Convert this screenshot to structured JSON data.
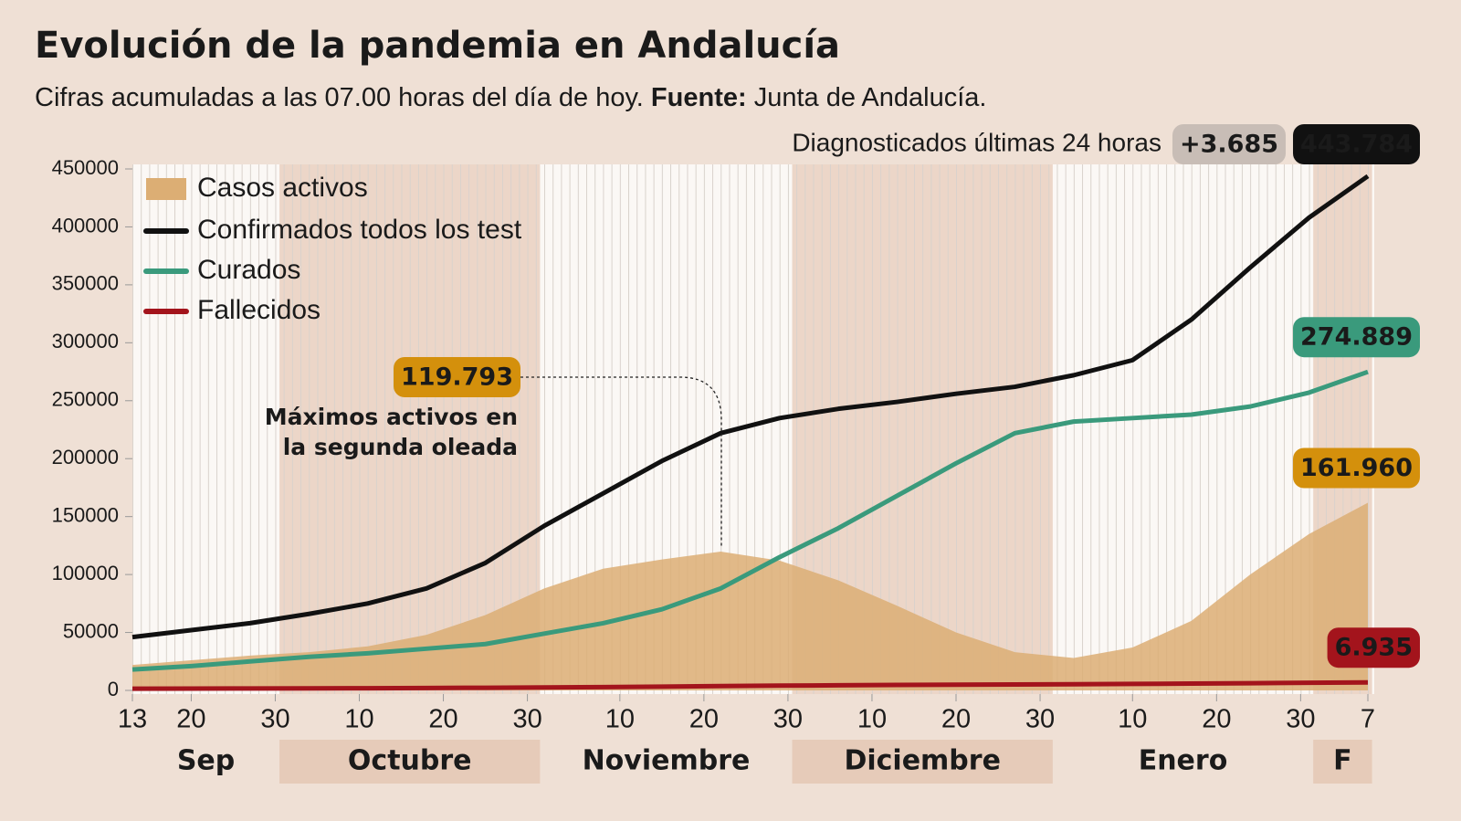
{
  "chart_data": {
    "type": "line",
    "title": "Evolución de la pandemia en Andalucía",
    "subtitle": [
      "Cifras acumuladas a las 07.00 horas del día de hoy.",
      "Fuente:",
      "Junta de Andalucía."
    ],
    "x": [
      0,
      7,
      14,
      21,
      28,
      35,
      42,
      49,
      56,
      63,
      70,
      77,
      84,
      91,
      98,
      105,
      112,
      119,
      126,
      133,
      140,
      147
    ],
    "xlim": [
      0,
      147
    ],
    "xticks": [
      {
        "value": 0,
        "label": "13"
      },
      {
        "value": 7,
        "label": "20"
      },
      {
        "value": 17,
        "label": "30"
      },
      {
        "value": 27,
        "label": "10"
      },
      {
        "value": 37,
        "label": "20"
      },
      {
        "value": 47,
        "label": "30"
      },
      {
        "value": 58,
        "label": "10"
      },
      {
        "value": 68,
        "label": "20"
      },
      {
        "value": 78,
        "label": "30"
      },
      {
        "value": 88,
        "label": "10"
      },
      {
        "value": 98,
        "label": "20"
      },
      {
        "value": 108,
        "label": "30"
      },
      {
        "value": 119,
        "label": "10"
      },
      {
        "value": 129,
        "label": "20"
      },
      {
        "value": 139,
        "label": "30"
      },
      {
        "value": 147,
        "label": "7"
      }
    ],
    "months": [
      {
        "label": "Sep",
        "start": 0,
        "end": 17
      },
      {
        "label": "Octubre",
        "start": 18,
        "end": 48
      },
      {
        "label": "Noviembre",
        "start": 49,
        "end": 78
      },
      {
        "label": "Diciembre",
        "start": 79,
        "end": 109
      },
      {
        "label": "Enero",
        "start": 110,
        "end": 140
      },
      {
        "label": "F",
        "start": 141,
        "end": 147
      }
    ],
    "ylim": [
      0,
      450000
    ],
    "yticks": [
      0,
      50000,
      100000,
      150000,
      200000,
      250000,
      300000,
      350000,
      400000,
      450000
    ],
    "series": [
      {
        "name": "Casos activos",
        "kind": "area",
        "color": "#dcae74",
        "label_color": "#d4900c",
        "end_label": "161.960",
        "values": [
          22000,
          26000,
          30000,
          33000,
          38000,
          48000,
          65000,
          88000,
          105000,
          113000,
          119793,
          112000,
          95000,
          73000,
          50000,
          33000,
          28000,
          37000,
          60000,
          100000,
          135000,
          161960
        ]
      },
      {
        "name": "Confirmados todos los test",
        "kind": "line",
        "color": "#111111",
        "label_color": "#111111",
        "end_label": "443.784",
        "values": [
          46000,
          52000,
          58000,
          66000,
          75000,
          88000,
          110000,
          142000,
          170000,
          198000,
          222000,
          235000,
          243000,
          249000,
          256000,
          262000,
          272000,
          285000,
          320000,
          365000,
          408000,
          443784
        ]
      },
      {
        "name": "Curados",
        "kind": "line",
        "color": "#3a9a7c",
        "label_color": "#3a9a7c",
        "end_label": "274.889",
        "values": [
          18000,
          21000,
          25000,
          29000,
          32000,
          36000,
          40000,
          49000,
          58000,
          70000,
          88000,
          115000,
          140000,
          168000,
          196000,
          222000,
          232000,
          235000,
          238000,
          245000,
          257000,
          274889
        ]
      },
      {
        "name": "Fallecidos",
        "kind": "line",
        "color": "#a3141c",
        "label_color": "#a3141c",
        "end_label": "6.935",
        "values": [
          1500,
          1600,
          1700,
          1800,
          1900,
          2100,
          2300,
          2600,
          2900,
          3300,
          3700,
          4100,
          4400,
          4700,
          4900,
          5100,
          5300,
          5600,
          5900,
          6200,
          6600,
          6935
        ]
      }
    ],
    "daily": {
      "text": "Diagnosticados últimas 24 horas",
      "value": 3685,
      "label": "+3.685"
    },
    "annotation": {
      "lines": [
        "Máximos activos en",
        "la segunda oleada"
      ],
      "x": 70,
      "value": 119793,
      "label": "119.793"
    }
  }
}
